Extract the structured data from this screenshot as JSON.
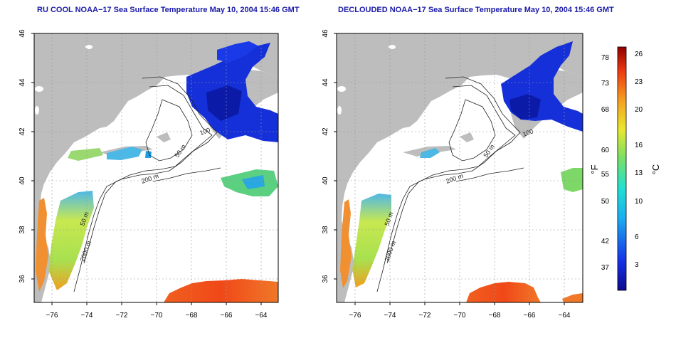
{
  "panels": [
    {
      "title": "RU COOL NOAA−17 Sea Surface Temperature May 10, 2004 15:46 GMT",
      "contours": [
        "50 m",
        "100",
        "200 m",
        "50 m",
        "2000 m"
      ]
    },
    {
      "title": "DECLOUDED NOAA−17 Sea Surface Temperature May 10, 2004 15:46 GMT",
      "contours": [
        "50 m",
        "100",
        "200 m",
        "50 m",
        "2000 m"
      ]
    }
  ],
  "axes": {
    "lon_ticks": [
      "−76",
      "−74",
      "−72",
      "−70",
      "−68",
      "−66",
      "−64"
    ],
    "lat_ticks": [
      "46",
      "44",
      "42",
      "40",
      "38",
      "36"
    ]
  },
  "colorbar": {
    "f_label": "°F",
    "c_label": "°C",
    "f_ticks": [
      "78",
      "73",
      "68",
      "60",
      "55",
      "50",
      "42",
      "37"
    ],
    "c_ticks": [
      "26",
      "23",
      "20",
      "16",
      "13",
      "10",
      "6",
      "3"
    ]
  },
  "colors": {
    "land": "#bdbdbd",
    "ocean": "#ffffff",
    "title": "#1a1aa8",
    "grid": "#999999"
  }
}
